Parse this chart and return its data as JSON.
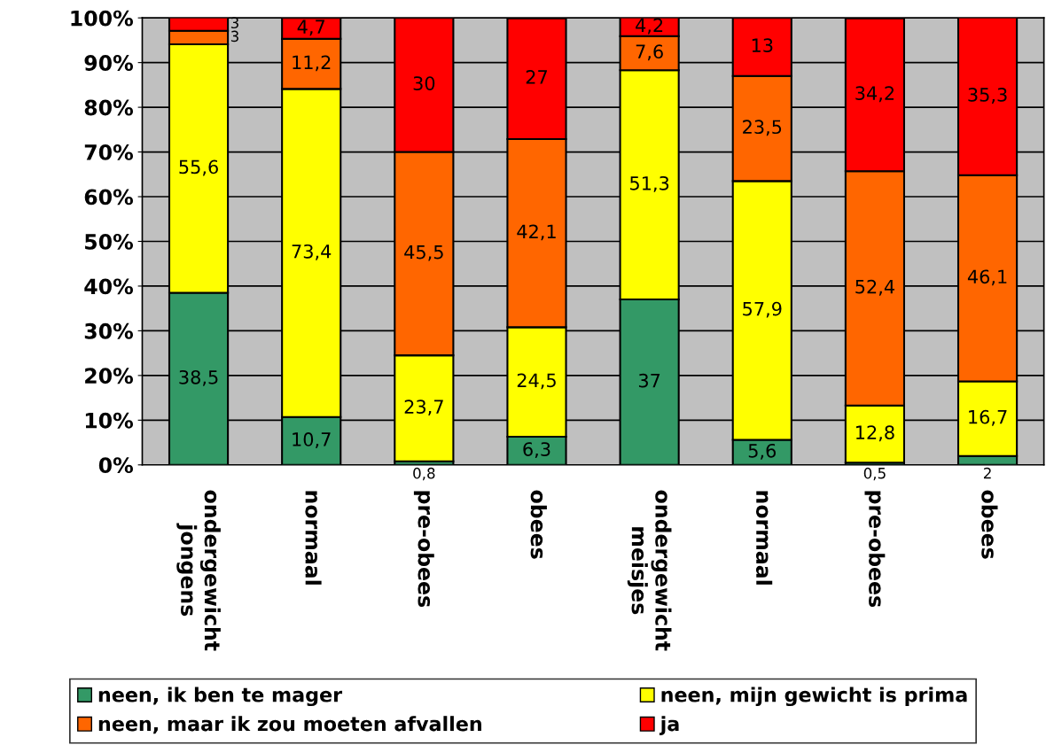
{
  "chart_data": {
    "type": "bar",
    "stacked": true,
    "categories": [
      "ondergewicht\njongens",
      "normaal",
      "pre-obees",
      "obees",
      "ondergewicht\nmeisjes",
      "normaal",
      "pre-obees",
      "obees"
    ],
    "series": [
      {
        "name": "neen, ik ben te mager",
        "color": "#339966",
        "values": [
          38.5,
          10.7,
          0.8,
          6.3,
          37,
          5.6,
          0.5,
          2
        ],
        "value_labels": [
          "38,5",
          "10,7",
          "0,8",
          "6,3",
          "37",
          "5,6",
          "0,5",
          "2"
        ]
      },
      {
        "name": "neen, mijn gewicht is prima",
        "color": "#ffff00",
        "values": [
          55.6,
          73.4,
          23.7,
          24.5,
          51.3,
          57.9,
          12.8,
          16.7
        ],
        "value_labels": [
          "55,6",
          "73,4",
          "23,7",
          "24,5",
          "51,3",
          "57,9",
          "12,8",
          "16,7"
        ]
      },
      {
        "name": "neen, maar ik zou moeten afvallen",
        "color": "#ff6600",
        "values": [
          3,
          11.2,
          45.5,
          42.1,
          7.6,
          23.5,
          52.4,
          46.1
        ],
        "value_labels": [
          "3",
          "11,2",
          "45,5",
          "42,1",
          "7,6",
          "23,5",
          "52,4",
          "46,1"
        ]
      },
      {
        "name": "ja",
        "color": "#ff0000",
        "values": [
          3,
          4.7,
          30,
          27,
          4.2,
          13,
          34.2,
          35.3
        ],
        "value_labels": [
          "3",
          "4,7",
          "30",
          "27",
          "4,2",
          "13",
          "34,2",
          "35,3"
        ]
      }
    ],
    "ylim": [
      0,
      100
    ],
    "yticks": [
      {
        "value": 0,
        "label": "0%"
      },
      {
        "value": 10,
        "label": "10%"
      },
      {
        "value": 20,
        "label": "20%"
      },
      {
        "value": 30,
        "label": "30%"
      },
      {
        "value": 40,
        "label": "40%"
      },
      {
        "value": 50,
        "label": "50%"
      },
      {
        "value": 60,
        "label": "60%"
      },
      {
        "value": 70,
        "label": "70%"
      },
      {
        "value": 80,
        "label": "80%"
      },
      {
        "value": 90,
        "label": "90%"
      },
      {
        "value": 100,
        "label": "100%"
      }
    ],
    "grid": "y",
    "legend": "bottom"
  }
}
